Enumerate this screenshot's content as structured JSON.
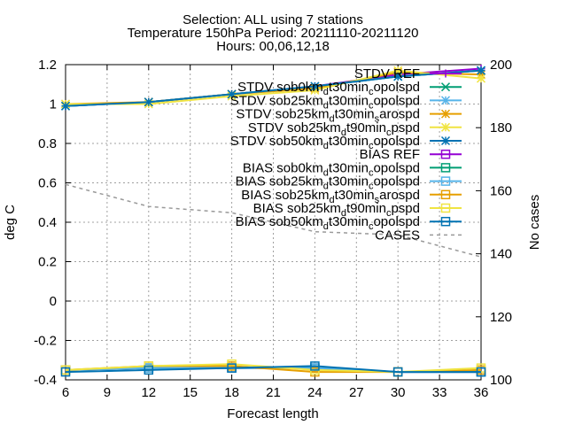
{
  "title_lines": [
    "Selection: ALL using     7 stations",
    "Temperature 150hPa   Period: 20211110-20211120",
    "Hours: 00,06,12,18"
  ],
  "chart_data": {
    "type": "line",
    "title": "Selection: ALL using 7 stations / Temperature 150hPa Period: 20211110-20211120 / Hours: 00,06,12,18",
    "xlabel": "Forecast length",
    "ylabel": "deg C",
    "y2label": "No cases",
    "x": [
      6,
      12,
      18,
      24,
      30,
      36
    ],
    "xticks": [
      6,
      9,
      12,
      15,
      18,
      21,
      24,
      27,
      30,
      33,
      36
    ],
    "xlim": [
      6,
      36
    ],
    "ylim": [
      -0.4,
      1.2
    ],
    "yticks": [
      -0.4,
      -0.2,
      0,
      0.2,
      0.4,
      0.6,
      0.8,
      1,
      1.2
    ],
    "ytick_labels": [
      "-0.4",
      "-0.2",
      "0",
      "0.2",
      "0.4",
      "0.6",
      "0.8",
      "1",
      "1.2"
    ],
    "y2lim": [
      100,
      200
    ],
    "y2ticks": [
      100,
      120,
      140,
      160,
      180,
      200
    ],
    "grid": true,
    "legend_position": "top-right",
    "series": [
      {
        "name": "STDV REF",
        "color": "#9400d3",
        "marker": "plus",
        "axis": "y1",
        "values": [
          0.99,
          1.01,
          1.05,
          1.09,
          1.15,
          1.18
        ]
      },
      {
        "name": "STDV sob0km_dt30min_copolspd",
        "color": "#009e73",
        "marker": "x",
        "axis": "y1",
        "values": [
          0.99,
          1.01,
          1.05,
          1.09,
          1.14,
          1.17
        ]
      },
      {
        "name": "STDV sob25km_dt30min_copolspd",
        "color": "#56b4e9",
        "marker": "star",
        "axis": "y1",
        "values": [
          0.99,
          1.01,
          1.05,
          1.09,
          1.14,
          1.17
        ]
      },
      {
        "name": "STDV sob25km_dt30min_sarospd",
        "color": "#e69f00",
        "marker": "star",
        "axis": "y1",
        "values": [
          1.0,
          1.01,
          1.05,
          1.08,
          1.16,
          1.15
        ]
      },
      {
        "name": "STDV sob25km_dt90min_cpspd",
        "color": "#f0e442",
        "marker": "star",
        "axis": "y1",
        "values": [
          1.0,
          1.0,
          1.04,
          1.07,
          1.17,
          1.13
        ]
      },
      {
        "name": "STDV sob50km_dt30min_copolspd",
        "color": "#0072b2",
        "marker": "star",
        "axis": "y1",
        "values": [
          0.99,
          1.01,
          1.05,
          1.09,
          1.14,
          1.17
        ]
      },
      {
        "name": "BIAS REF",
        "color": "#9400d3",
        "marker": "square",
        "axis": "y1",
        "values": [
          -0.35,
          -0.34,
          -0.34,
          -0.34,
          -0.36,
          -0.36
        ]
      },
      {
        "name": "BIAS sob0km_dt30min_copolspd",
        "color": "#009e73",
        "marker": "square",
        "axis": "y1",
        "values": [
          -0.35,
          -0.34,
          -0.34,
          -0.34,
          -0.36,
          -0.36
        ]
      },
      {
        "name": "BIAS sob25km_dt30min_copolspd",
        "color": "#56b4e9",
        "marker": "square",
        "axis": "y1",
        "values": [
          -0.35,
          -0.34,
          -0.34,
          -0.34,
          -0.36,
          -0.36
        ]
      },
      {
        "name": "BIAS sob25km_dt30min_sarospd",
        "color": "#e69f00",
        "marker": "square",
        "axis": "y1",
        "values": [
          -0.35,
          -0.33,
          -0.33,
          -0.36,
          -0.36,
          -0.35
        ]
      },
      {
        "name": "BIAS sob25km_dt90min_cpspd",
        "color": "#f0e442",
        "marker": "square",
        "axis": "y1",
        "values": [
          -0.35,
          -0.33,
          -0.32,
          -0.35,
          -0.36,
          -0.34
        ]
      },
      {
        "name": "BIAS sob50km_dt30min_copolspd",
        "color": "#0072b2",
        "marker": "square",
        "axis": "y1",
        "values": [
          -0.36,
          -0.35,
          -0.34,
          -0.33,
          -0.36,
          -0.36
        ]
      },
      {
        "name": "CASES",
        "color": "#999999",
        "marker": "none",
        "dashed": true,
        "axis": "y2",
        "values": [
          162,
          155,
          153,
          147,
          146,
          139
        ]
      }
    ]
  },
  "legend_labels": [
    {
      "base": "STDV REF"
    },
    {
      "base": "STDV sob0km",
      "sub1": "d",
      "mid": "t30min",
      "sub2": "c",
      "end": "opolspd"
    },
    {
      "base": "STDV sob25km",
      "sub1": "d",
      "mid": "t30min",
      "sub2": "c",
      "end": "opolspd"
    },
    {
      "base": "STDV sob25km",
      "sub1": "d",
      "mid": "t30min",
      "sub2": "s",
      "end": "arospd"
    },
    {
      "base": "STDV sob25km",
      "sub1": "d",
      "mid": "t90min",
      "sub2": "c",
      "end": "pspd"
    },
    {
      "base": "STDV sob50km",
      "sub1": "d",
      "mid": "t30min",
      "sub2": "c",
      "end": "opolspd"
    },
    {
      "base": "BIAS REF"
    },
    {
      "base": "BIAS sob0km",
      "sub1": "d",
      "mid": "t30min",
      "sub2": "c",
      "end": "opolspd"
    },
    {
      "base": "BIAS sob25km",
      "sub1": "d",
      "mid": "t30min",
      "sub2": "c",
      "end": "opolspd"
    },
    {
      "base": "BIAS sob25km",
      "sub1": "d",
      "mid": "t30min",
      "sub2": "s",
      "end": "arospd"
    },
    {
      "base": "BIAS sob25km",
      "sub1": "d",
      "mid": "t90min",
      "sub2": "c",
      "end": "pspd"
    },
    {
      "base": "BIAS sob50km",
      "sub1": "d",
      "mid": "t30min",
      "sub2": "c",
      "end": "opolspd"
    },
    {
      "base": "CASES"
    }
  ]
}
